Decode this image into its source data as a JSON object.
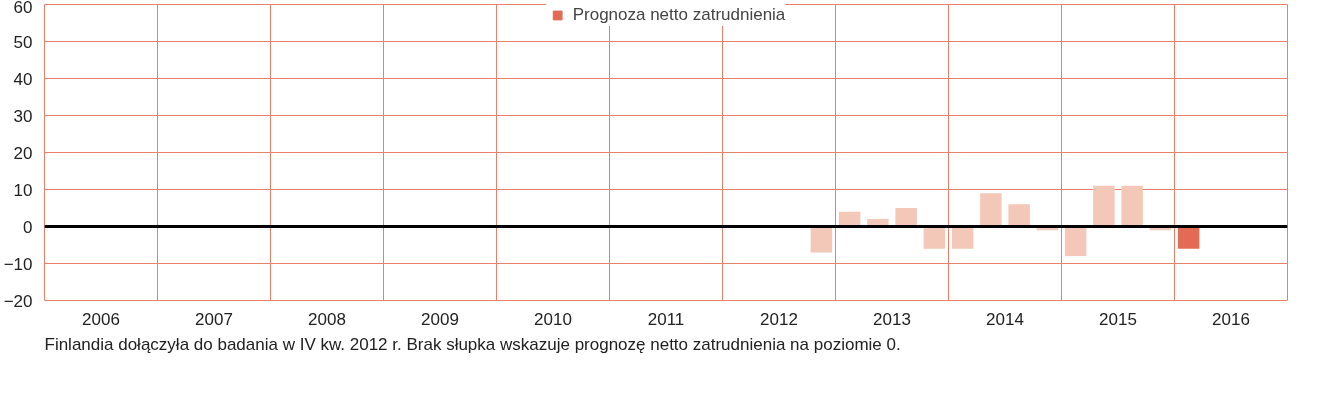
{
  "chart_data": {
    "type": "bar",
    "x": [
      2012.875,
      2013.125,
      2013.375,
      2013.625,
      2013.875,
      2014.125,
      2014.375,
      2014.625,
      2014.875,
      2015.125,
      2015.375,
      2015.625,
      2015.875,
      2016.125
    ],
    "series": [
      {
        "name": "Prognoza netto zatrudnienia",
        "color": "#e36b56",
        "values": [
          -7,
          4,
          2,
          5,
          -6,
          -6,
          9,
          6,
          -1,
          -8,
          11,
          11,
          -1,
          -6
        ],
        "colors": [
          "#f4c8b9",
          "#f4c8b9",
          "#f4c8b9",
          "#f4c8b9",
          "#f4c8b9",
          "#f4c8b9",
          "#f4c8b9",
          "#f4c8b9",
          "#f4c8b9",
          "#f4c8b9",
          "#f4c8b9",
          "#f4c8b9",
          "#f4c8b9",
          "#e36b56"
        ]
      }
    ],
    "xlim": [
      2006,
      2017
    ],
    "xticks": [
      {
        "value": 2006.5,
        "label": "2006"
      },
      {
        "value": 2007,
        "label": null
      },
      {
        "value": 2007.5,
        "label": "2007"
      },
      {
        "value": 2008,
        "label": null
      },
      {
        "value": 2008.5,
        "label": "2008"
      },
      {
        "value": 2009,
        "label": null
      },
      {
        "value": 2009.5,
        "label": "2009"
      },
      {
        "value": 2010,
        "label": null
      },
      {
        "value": 2010.5,
        "label": "2010"
      },
      {
        "value": 2011,
        "label": null
      },
      {
        "value": 2011.5,
        "label": "2011"
      },
      {
        "value": 2012,
        "label": null
      },
      {
        "value": 2012.5,
        "label": "2012"
      },
      {
        "value": 2013,
        "label": null
      },
      {
        "value": 2013.5,
        "label": "2013"
      },
      {
        "value": 2014,
        "label": null
      },
      {
        "value": 2014.5,
        "label": "2014"
      },
      {
        "value": 2015,
        "label": null
      },
      {
        "value": 2015.5,
        "label": "2015"
      },
      {
        "value": 2016,
        "label": null
      },
      {
        "value": 2016.5,
        "label": "2016"
      }
    ],
    "ylim": [
      -20,
      60
    ],
    "yticks": [
      -20,
      -10,
      0,
      10,
      20,
      30,
      40,
      50,
      60
    ],
    "grid": true,
    "legend": "top",
    "ref_lines": [
      {
        "axis": "y",
        "value": 0,
        "color": "#000000"
      }
    ],
    "annotations": [
      "Finlandia dołączyła do badania w IV kw. 2012 r. Brak słupka wskazuje prognozę netto zatrudnienia na poziomie 0."
    ]
  }
}
